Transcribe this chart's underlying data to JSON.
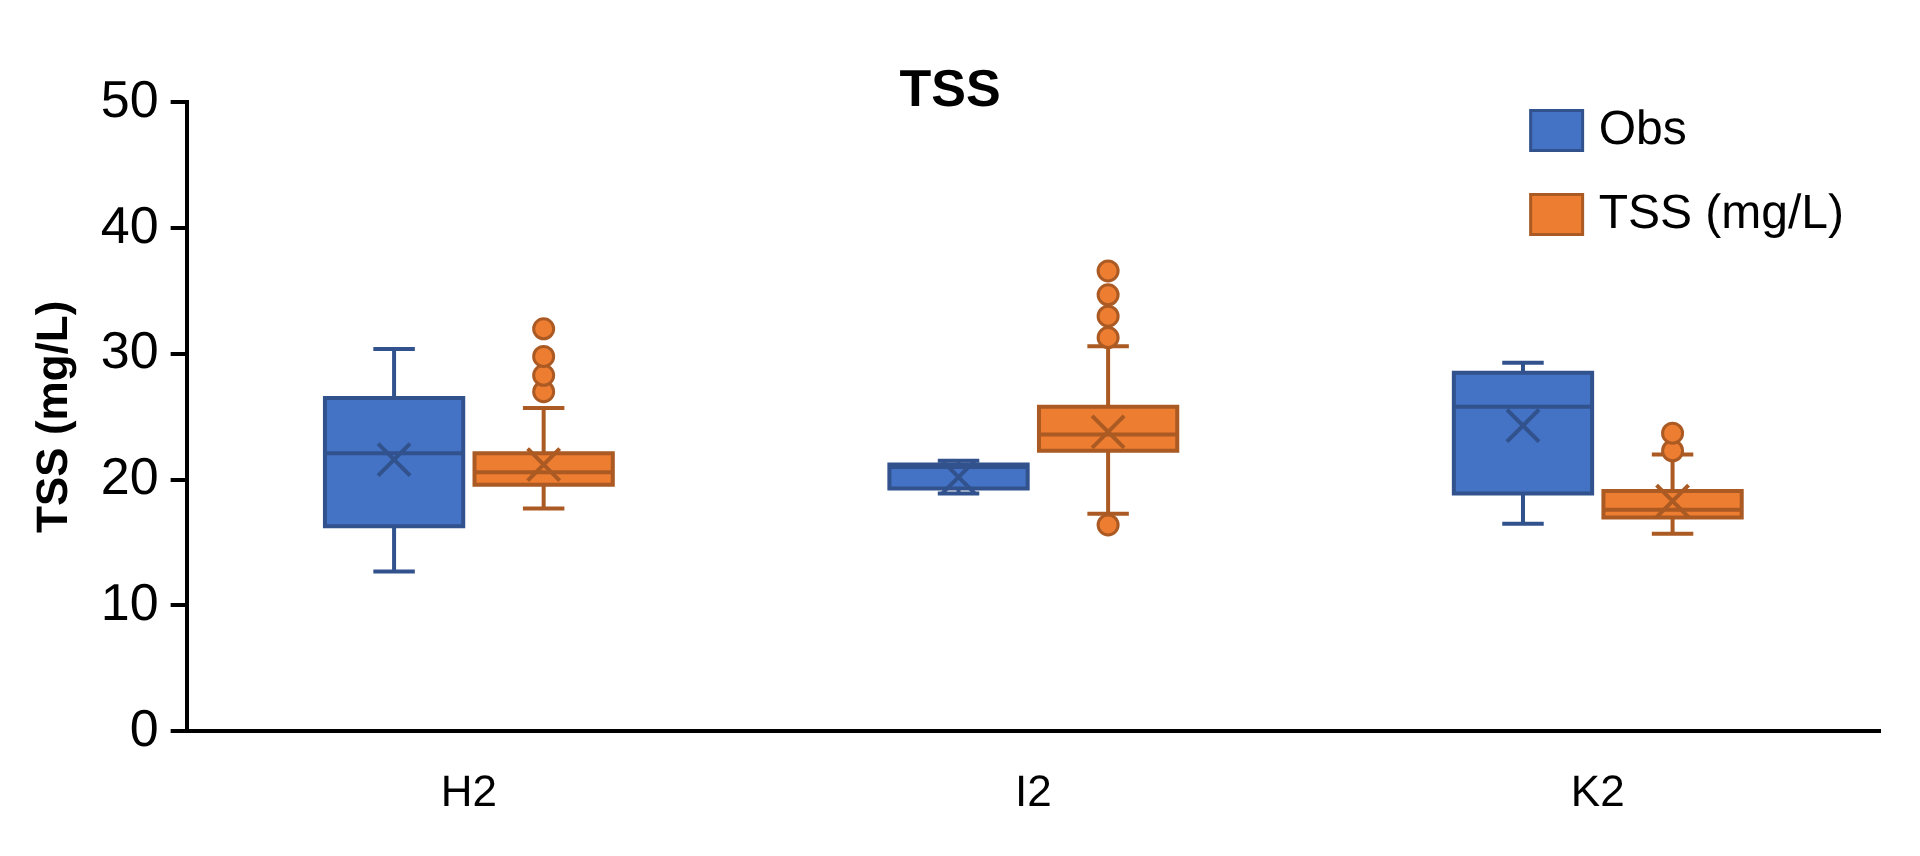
{
  "chart_data": {
    "type": "box",
    "title": "TSS",
    "ylabel": "TSS (mg/L)",
    "categories": [
      "H2",
      "I2",
      "K2"
    ],
    "ylim": [
      0,
      50
    ],
    "yticks": [
      0,
      10,
      20,
      30,
      40,
      50
    ],
    "grid": false,
    "legend": "top right",
    "marker": "circle",
    "series": [
      {
        "name": "Obs",
        "color": "#4472c4",
        "boxes": [
          {
            "low": 12.7,
            "q1": 16.3,
            "median": 22.1,
            "q3": 26.5,
            "high": 30.4,
            "mean": 21.6
          },
          {
            "low": 18.9,
            "q1": 19.3,
            "median": 21.0,
            "q3": 21.2,
            "high": 21.5,
            "mean": 20.2
          },
          {
            "low": 16.5,
            "q1": 18.9,
            "median": 25.8,
            "q3": 28.5,
            "high": 29.3,
            "mean": 24.3
          }
        ]
      },
      {
        "name": "TSS (mg/L)",
        "color": "#ed7d31",
        "boxes": [
          {
            "low": 17.7,
            "q1": 19.6,
            "median": 20.6,
            "q3": 22.1,
            "high": 25.7,
            "mean": 21.2,
            "outliers": [
              27.0,
              28.3,
              29.8,
              32.0
            ]
          },
          {
            "low": 17.3,
            "q1": 22.3,
            "median": 23.6,
            "q3": 25.8,
            "high": 30.6,
            "mean": 23.8,
            "outliers": [
              16.4,
              31.3,
              33.0,
              34.7,
              36.6
            ]
          },
          {
            "low": 15.7,
            "q1": 17.0,
            "median": 17.6,
            "q3": 19.1,
            "high": 22.0,
            "mean": 18.3,
            "outliers": [
              22.3,
              23.7
            ]
          }
        ]
      }
    ]
  }
}
